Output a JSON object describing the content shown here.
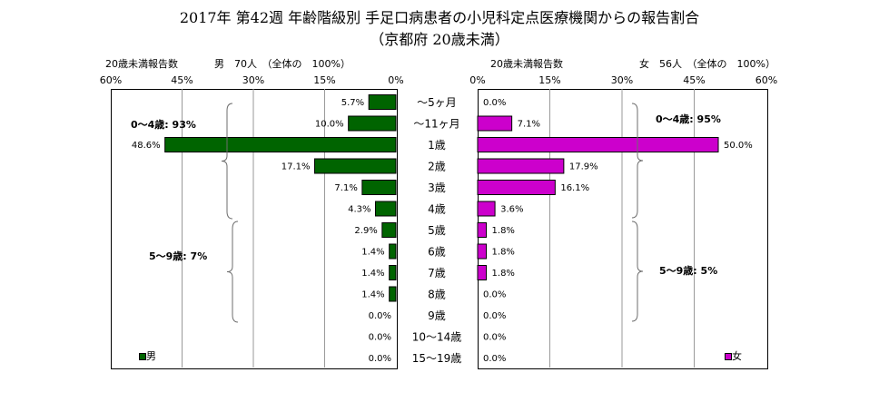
{
  "title_line1": "2017年 第42週 年齢階級別 手足口病患者の小児科定点医療機関からの報告割合",
  "title_line2": "（京都府 20歳未満）",
  "chart_data": [
    {
      "type": "bar",
      "orientation": "horizontal",
      "direction": "right-to-left",
      "header_label": "20歳未満報告数",
      "header_detail": "男　70人　（全体の　100%）",
      "xlim": [
        0,
        60
      ],
      "xticks": [
        "60%",
        "45%",
        "30%",
        "15%",
        "0%"
      ],
      "legend": "男",
      "color": "#006400",
      "group_labels": [
        "0～4歳: 93%",
        "5～9歳: 7%"
      ],
      "categories": [
        "～5ヶ月",
        "～11ヶ月",
        "1歳",
        "2歳",
        "3歳",
        "4歳",
        "5歳",
        "6歳",
        "7歳",
        "8歳",
        "9歳",
        "10～14歳",
        "15～19歳"
      ],
      "values": [
        5.7,
        10.0,
        48.6,
        17.1,
        7.1,
        4.3,
        2.9,
        1.4,
        1.4,
        1.4,
        0.0,
        0.0,
        0.0
      ],
      "value_labels": [
        "5.7%",
        "10.0%",
        "48.6%",
        "17.1%",
        "7.1%",
        "4.3%",
        "2.9%",
        "1.4%",
        "1.4%",
        "1.4%",
        "0.0%",
        "0.0%",
        "0.0%"
      ],
      "grid": true
    },
    {
      "type": "bar",
      "orientation": "horizontal",
      "direction": "left-to-right",
      "header_label": "20歳未満報告数",
      "header_detail": "女　56人　（全体の　100%）",
      "xlim": [
        0,
        60
      ],
      "xticks": [
        "0%",
        "15%",
        "30%",
        "45%",
        "60%"
      ],
      "legend": "女",
      "color": "#CC00CC",
      "group_labels": [
        "0～4歳: 95%",
        "5～9歳: 5%"
      ],
      "categories": [
        "～5ヶ月",
        "～11ヶ月",
        "1歳",
        "2歳",
        "3歳",
        "4歳",
        "5歳",
        "6歳",
        "7歳",
        "8歳",
        "9歳",
        "10～14歳",
        "15～19歳"
      ],
      "values": [
        0.0,
        7.1,
        50.0,
        17.9,
        16.1,
        3.6,
        1.8,
        1.8,
        1.8,
        0.0,
        0.0,
        0.0,
        0.0
      ],
      "value_labels": [
        "0.0%",
        "7.1%",
        "50.0%",
        "17.9%",
        "16.1%",
        "3.6%",
        "1.8%",
        "1.8%",
        "1.8%",
        "0.0%",
        "0.0%",
        "0.0%",
        "0.0%"
      ],
      "grid": true
    }
  ]
}
